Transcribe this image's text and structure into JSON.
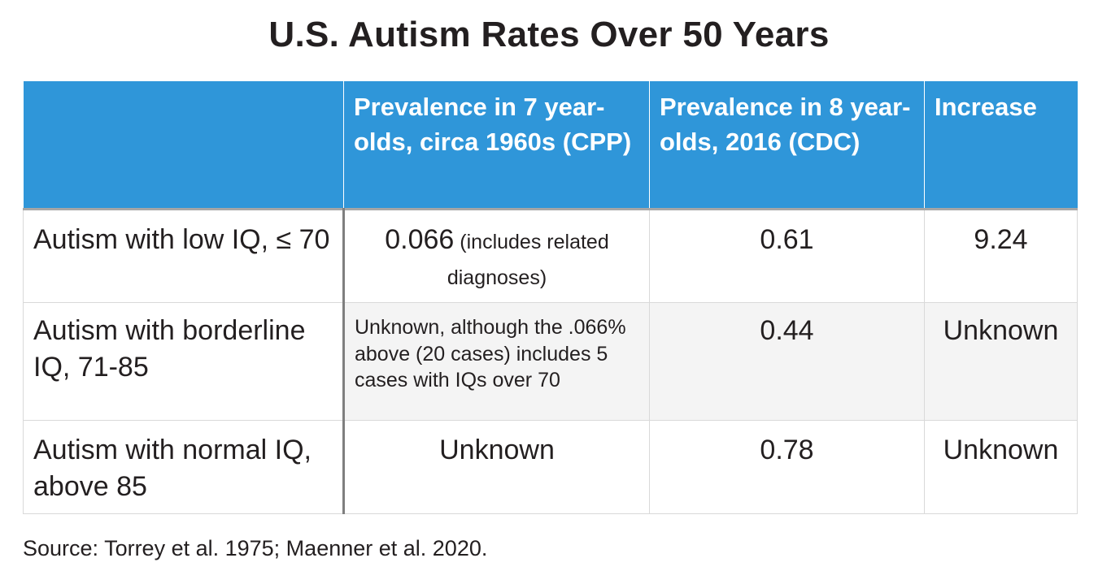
{
  "title": "U.S. Autism Rates Over 50 Years",
  "table": {
    "headers": [
      "",
      "Prevalence in 7 year-olds, circa 1960s (CPP)",
      "Prevalence in 8 year-olds, 2016 (CDC)",
      "Increase"
    ],
    "rows": [
      {
        "label": "Autism with low IQ, ≤ 70",
        "cpp_value": "0.066",
        "cpp_note": " (includes related diagnoses)",
        "cdc": "0.61",
        "increase": "9.24"
      },
      {
        "label": "Autism with borderline IQ, 71-85",
        "cpp_value": "",
        "cpp_note": "Unknown, although the .066% above (20 cases) includes 5 cases with IQs over 70",
        "cdc": "0.44",
        "increase": "Unknown"
      },
      {
        "label": "Autism with normal IQ, above 85",
        "cpp_value": "Unknown",
        "cpp_note": "",
        "cdc": "0.78",
        "increase": "Unknown"
      }
    ]
  },
  "source": "Source: Torrey et al. 1975; Maenner et al. 2020.",
  "colors": {
    "header_bg": "#2f96d9",
    "header_text": "#ffffff",
    "body_text": "#231f20",
    "alt_row_bg": "#f4f4f4"
  }
}
